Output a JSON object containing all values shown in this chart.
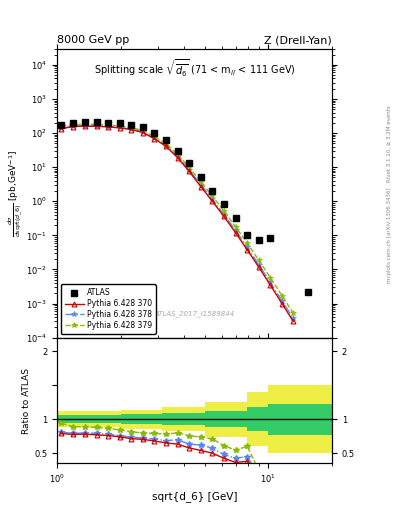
{
  "title_left": "8000 GeV pp",
  "title_right": "Z (Drell-Yan)",
  "main_title": "Splitting scale $\\sqrt{\\overline{d_6}}$ (71 < m$_{ll}$ < 111 GeV)",
  "watermark": "ATLAS_2017_I1589844",
  "right_label1": "Rivet 3.1.10, ≥ 3.2M events",
  "right_label2": "mcplots.cern.ch [arXiv:1306.3436]",
  "atlas_x": [
    1.05,
    1.19,
    1.35,
    1.54,
    1.74,
    1.98,
    2.25,
    2.55,
    2.89,
    3.28,
    3.72,
    4.22,
    4.79,
    5.43,
    6.16,
    6.99,
    7.93,
    8.99,
    10.2,
    15.4
  ],
  "atlas_y": [
    170,
    200,
    205,
    205,
    200,
    192,
    178,
    148,
    100,
    63,
    30,
    13,
    5.0,
    2.0,
    0.85,
    0.33,
    0.1,
    0.075,
    0.082,
    0.0022
  ],
  "py370_x": [
    1.05,
    1.19,
    1.35,
    1.54,
    1.74,
    1.98,
    2.25,
    2.55,
    2.89,
    3.28,
    3.72,
    4.22,
    4.79,
    5.43,
    6.16,
    6.99,
    7.93,
    8.99,
    10.2,
    11.6,
    13.1
  ],
  "py370_y": [
    135,
    155,
    160,
    158,
    152,
    142,
    127,
    104,
    68,
    41,
    19,
    7.5,
    2.7,
    1.0,
    0.36,
    0.12,
    0.038,
    0.012,
    0.0035,
    0.001,
    0.0003
  ],
  "py378_x": [
    1.05,
    1.19,
    1.35,
    1.54,
    1.74,
    1.98,
    2.25,
    2.55,
    2.89,
    3.28,
    3.72,
    4.22,
    4.79,
    5.43,
    6.16,
    6.99,
    7.93,
    8.99,
    10.2,
    11.6,
    13.1
  ],
  "py378_y": [
    138,
    158,
    164,
    162,
    156,
    146,
    131,
    107,
    71,
    43,
    21,
    8.2,
    3.1,
    1.15,
    0.41,
    0.14,
    0.045,
    0.014,
    0.0042,
    0.0012,
    0.00037
  ],
  "py379_x": [
    1.05,
    1.19,
    1.35,
    1.54,
    1.74,
    1.98,
    2.25,
    2.55,
    2.89,
    3.28,
    3.72,
    4.22,
    4.79,
    5.43,
    6.16,
    6.99,
    7.93,
    8.99,
    10.2,
    11.6,
    13.1
  ],
  "py379_y": [
    160,
    178,
    182,
    180,
    173,
    162,
    145,
    118,
    79,
    49,
    24,
    9.8,
    3.7,
    1.42,
    0.52,
    0.18,
    0.06,
    0.019,
    0.0058,
    0.0017,
    0.00052
  ],
  "ratio_370_x": [
    1.05,
    1.19,
    1.35,
    1.54,
    1.74,
    1.98,
    2.25,
    2.55,
    2.89,
    3.28,
    3.72,
    4.22,
    4.79,
    5.43,
    6.16,
    6.99,
    7.93,
    8.99,
    10.2
  ],
  "ratio_370_y": [
    0.79,
    0.775,
    0.78,
    0.77,
    0.76,
    0.74,
    0.714,
    0.703,
    0.68,
    0.651,
    0.633,
    0.577,
    0.54,
    0.5,
    0.424,
    0.364,
    0.38,
    0.16,
    0.043
  ],
  "ratio_378_x": [
    1.05,
    1.19,
    1.35,
    1.54,
    1.74,
    1.98,
    2.25,
    2.55,
    2.89,
    3.28,
    3.72,
    4.22,
    4.79,
    5.43,
    6.16,
    6.99,
    7.93,
    8.99,
    10.2
  ],
  "ratio_378_y": [
    0.812,
    0.79,
    0.8,
    0.79,
    0.78,
    0.76,
    0.736,
    0.722,
    0.71,
    0.683,
    0.7,
    0.631,
    0.62,
    0.575,
    0.482,
    0.424,
    0.45,
    0.187,
    0.051
  ],
  "ratio_379_x": [
    1.05,
    1.19,
    1.35,
    1.54,
    1.74,
    1.98,
    2.25,
    2.55,
    2.89,
    3.28,
    3.72,
    4.22,
    4.79,
    5.43,
    6.16,
    6.99,
    7.93,
    8.99,
    10.2,
    11.6,
    13.1
  ],
  "ratio_379_y": [
    0.94,
    0.89,
    0.888,
    0.878,
    0.865,
    0.844,
    0.815,
    0.797,
    0.79,
    0.778,
    0.8,
    0.754,
    0.74,
    0.71,
    0.612,
    0.545,
    0.6,
    0.253,
    0.071,
    0.0,
    0.0
  ],
  "band_yellow_edges": [
    1.0,
    2.0,
    3.15,
    5.0,
    7.9,
    10.0,
    20.0
  ],
  "band_yellow_lo": [
    0.88,
    0.86,
    0.82,
    0.74,
    0.6,
    0.5,
    0.28
  ],
  "band_yellow_hi": [
    1.12,
    1.14,
    1.18,
    1.26,
    1.4,
    1.5,
    1.72
  ],
  "band_green_edges": [
    1.0,
    2.0,
    3.15,
    5.0,
    7.9,
    10.0,
    20.0
  ],
  "band_green_lo": [
    0.945,
    0.93,
    0.915,
    0.88,
    0.82,
    0.77,
    0.65
  ],
  "band_green_hi": [
    1.055,
    1.07,
    1.085,
    1.12,
    1.18,
    1.23,
    1.35
  ],
  "color_370": "#cc0000",
  "color_378": "#5588ff",
  "color_379": "#88bb00",
  "color_atlas": "black",
  "color_green_band": "#33cc66",
  "color_yellow_band": "#eeee44",
  "xlim": [
    1.0,
    20.0
  ],
  "ylim_main": [
    0.0001,
    30000.0
  ],
  "ylim_ratio": [
    0.35,
    2.2
  ]
}
